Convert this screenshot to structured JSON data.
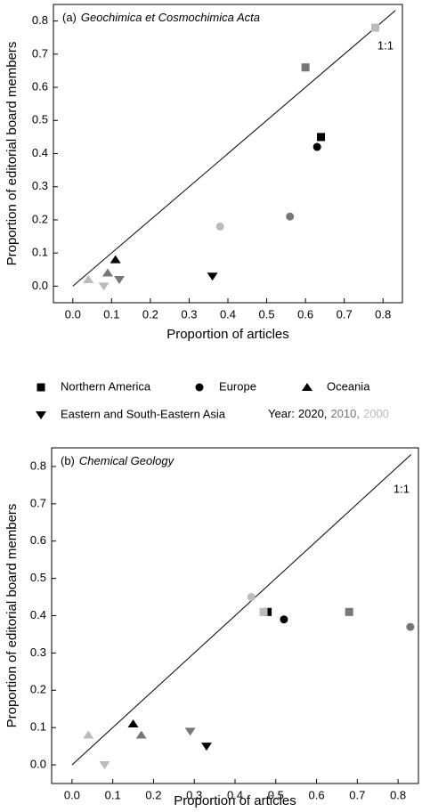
{
  "chart_data": [
    {
      "type": "scatter",
      "panel_label": "(a)",
      "title": "Geochimica et Cosmochimica Acta",
      "x_label": "Proportion of articles",
      "y_label": "Proportion of editorial board members",
      "diagonal_label": "1:1",
      "xlim": [
        -0.05,
        0.85
      ],
      "ylim": [
        -0.05,
        0.85
      ],
      "xticks": [
        {
          "value": 0,
          "label": "0.0"
        },
        0.1,
        0.2,
        0.3,
        0.4,
        0.5,
        0.6,
        0.7,
        0.8
      ],
      "yticks": [
        {
          "value": 0,
          "label": "0.0"
        },
        0.1,
        0.2,
        0.3,
        0.4,
        0.5,
        0.6,
        0.7,
        0.8
      ],
      "series": [
        {
          "marker": "square",
          "x": [
            0.64,
            0.6,
            0.78
          ],
          "values": [
            0.45,
            0.66,
            0.78
          ],
          "colors": [
            "#000000",
            "#777777",
            "#bbbbbb"
          ]
        },
        {
          "marker": "circle",
          "x": [
            0.63,
            0.56,
            0.38
          ],
          "values": [
            0.42,
            0.21,
            0.18
          ],
          "colors": [
            "#000000",
            "#777777",
            "#bbbbbb"
          ]
        },
        {
          "marker": "triangle-up",
          "x": [
            0.11,
            0.09,
            0.04
          ],
          "values": [
            0.08,
            0.04,
            0.02
          ],
          "colors": [
            "#000000",
            "#777777",
            "#bbbbbb"
          ]
        },
        {
          "marker": "triangle-down",
          "x": [
            0.36,
            0.12,
            0.08
          ],
          "values": [
            0.03,
            0.02,
            0.0
          ],
          "colors": [
            "#000000",
            "#777777",
            "#bbbbbb"
          ]
        }
      ]
    },
    {
      "type": "scatter",
      "panel_label": "(b)",
      "title": "Chemical Geology",
      "x_label": "Proportion of articles",
      "y_label": "Proportion of editorial board members",
      "diagonal_label": "1:1",
      "xlim": [
        -0.05,
        0.85
      ],
      "ylim": [
        -0.05,
        0.85
      ],
      "xticks": [
        {
          "value": 0,
          "label": "0.0"
        },
        0.1,
        0.2,
        0.3,
        0.4,
        0.5,
        0.6,
        0.7,
        0.8
      ],
      "yticks": [
        {
          "value": 0,
          "label": "0.0"
        },
        0.1,
        0.2,
        0.3,
        0.4,
        0.5,
        0.6,
        0.7,
        0.8
      ],
      "series": [
        {
          "marker": "square",
          "x": [
            0.48,
            0.68,
            0.47
          ],
          "values": [
            0.41,
            0.41,
            0.41
          ],
          "colors": [
            "#000000",
            "#777777",
            "#bbbbbb"
          ]
        },
        {
          "marker": "circle",
          "x": [
            0.52,
            0.83,
            0.44
          ],
          "values": [
            0.39,
            0.37,
            0.45
          ],
          "colors": [
            "#000000",
            "#777777",
            "#bbbbbb"
          ]
        },
        {
          "marker": "triangle-up",
          "x": [
            0.15,
            0.17,
            0.04
          ],
          "values": [
            0.11,
            0.08,
            0.08
          ],
          "colors": [
            "#000000",
            "#777777",
            "#bbbbbb"
          ]
        },
        {
          "marker": "triangle-down",
          "x": [
            0.33,
            0.29,
            0.08
          ],
          "values": [
            0.05,
            0.09,
            0.0
          ],
          "colors": [
            "#000000",
            "#777777",
            "#bbbbbb"
          ]
        }
      ]
    }
  ],
  "legend": {
    "markers": [
      {
        "label": "Northern America",
        "shape": "square"
      },
      {
        "label": "Europe",
        "shape": "circle"
      },
      {
        "label": "Oceania",
        "shape": "triangle-up"
      },
      {
        "label": "Eastern and South-Eastern Asia",
        "shape": "triangle-down"
      }
    ],
    "year_prefix": "Year:",
    "years": [
      {
        "label": "2020,",
        "color": "#000000"
      },
      {
        "label": "2010,",
        "color": "#777777"
      },
      {
        "label": "2000",
        "color": "#bbbbbb"
      }
    ]
  }
}
